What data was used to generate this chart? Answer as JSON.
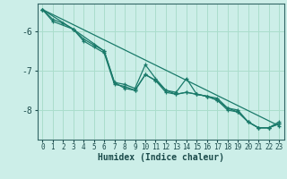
{
  "xlabel": "Humidex (Indice chaleur)",
  "bg_color": "#cceee8",
  "grid_color": "#aaddcc",
  "line_color": "#1a7a6a",
  "xlim": [
    -0.5,
    23.5
  ],
  "ylim": [
    -8.75,
    -5.3
  ],
  "yticks": [
    -8,
    -7,
    -6
  ],
  "xticks": [
    0,
    1,
    2,
    3,
    4,
    5,
    6,
    7,
    8,
    9,
    10,
    11,
    12,
    13,
    14,
    15,
    16,
    17,
    18,
    19,
    20,
    21,
    22,
    23
  ],
  "series": [
    {
      "x": [
        0,
        1,
        3,
        4,
        5,
        6,
        7,
        8,
        9,
        10,
        11,
        12,
        13,
        14,
        15,
        16,
        17,
        18,
        19,
        20,
        21,
        22,
        23
      ],
      "y": [
        -5.45,
        -5.75,
        -5.95,
        -6.2,
        -6.35,
        -6.5,
        -7.3,
        -7.35,
        -7.45,
        -6.85,
        -7.2,
        -7.5,
        -7.55,
        -7.2,
        -7.6,
        -7.65,
        -7.7,
        -7.95,
        -8.05,
        -8.3,
        -8.45,
        -8.45,
        -8.3
      ]
    },
    {
      "x": [
        0,
        1,
        2,
        3,
        4,
        5,
        6,
        7,
        8,
        9,
        10,
        11,
        12,
        13,
        14,
        15,
        16,
        17,
        18,
        19,
        20,
        21,
        22,
        23
      ],
      "y": [
        -5.45,
        -5.7,
        -5.8,
        -5.95,
        -6.25,
        -6.4,
        -6.55,
        -7.35,
        -7.4,
        -7.5,
        -7.1,
        -7.25,
        -7.55,
        -7.6,
        -7.55,
        -7.6,
        -7.65,
        -7.75,
        -8.0,
        -8.05,
        -8.3,
        -8.45,
        -8.45,
        -8.35
      ]
    },
    {
      "x": [
        0,
        23
      ],
      "y": [
        -5.45,
        -8.4
      ]
    },
    {
      "x": [
        0,
        3,
        6,
        7,
        8,
        9,
        10,
        11,
        12,
        13,
        14,
        15,
        16,
        17,
        18,
        19,
        20,
        21,
        22,
        23
      ],
      "y": [
        -5.45,
        -5.95,
        -6.5,
        -7.3,
        -7.45,
        -7.5,
        -7.1,
        -7.25,
        -7.5,
        -7.6,
        -7.55,
        -7.6,
        -7.65,
        -7.75,
        -7.95,
        -8.0,
        -8.3,
        -8.45,
        -8.45,
        -8.35
      ]
    }
  ]
}
